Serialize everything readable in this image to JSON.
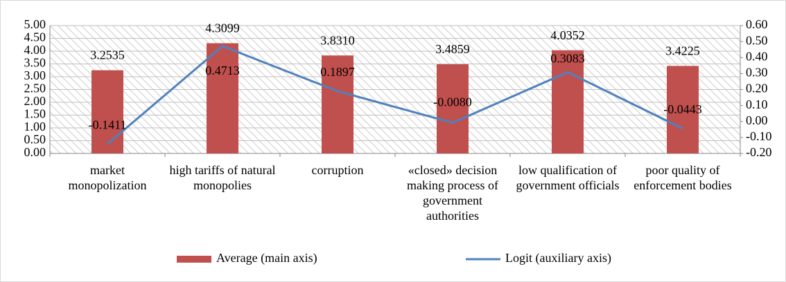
{
  "chart_data": {
    "type": "bar",
    "categories": [
      "market monopolization",
      "high tariffs of natural monopolies",
      "corruption",
      "«closed» decision making process of government authorities",
      "low qualification of government officials",
      "poor quality of enforcement bodies"
    ],
    "series": [
      {
        "name": "Average (main axis)",
        "type": "bar",
        "color": "#c0504d",
        "axis": "y",
        "values": [
          3.2535,
          4.3099,
          3.831,
          3.4859,
          4.0352,
          3.4225
        ],
        "value_labels": [
          "3.2535",
          "4.3099",
          "3.8310",
          "3.4859",
          "4.0352",
          "3.4225"
        ]
      },
      {
        "name": "Logit (auxiliary axis)",
        "type": "line",
        "color": "#4f81bd",
        "axis": "y2",
        "values": [
          -0.1411,
          0.4713,
          0.1897,
          -0.008,
          0.3083,
          -0.0443
        ],
        "value_labels": [
          "-0.1411",
          "0.4713",
          "0.1897",
          "-0.0080",
          "0.3083",
          "-0.0443"
        ]
      }
    ],
    "ylim": [
      0,
      5
    ],
    "yticks": [
      {
        "value": 0,
        "label": "0.00"
      },
      {
        "value": 0.5,
        "label": "0.50"
      },
      {
        "value": 1,
        "label": "1.00"
      },
      {
        "value": 1.5,
        "label": "1.50"
      },
      {
        "value": 2,
        "label": "2.00"
      },
      {
        "value": 2.5,
        "label": "2.50"
      },
      {
        "value": 3,
        "label": "3.00"
      },
      {
        "value": 3.5,
        "label": "3.50"
      },
      {
        "value": 4,
        "label": "4.00"
      },
      {
        "value": 4.5,
        "label": "4.50"
      },
      {
        "value": 5,
        "label": "5.00"
      }
    ],
    "y2lim": [
      -0.2,
      0.6
    ],
    "y2ticks": [
      {
        "value": -0.2,
        "label": "-0.20"
      },
      {
        "value": -0.1,
        "label": "-0.10"
      },
      {
        "value": 0,
        "label": "0.00"
      },
      {
        "value": 0.1,
        "label": "0.10"
      },
      {
        "value": 0.2,
        "label": "0.20"
      },
      {
        "value": 0.3,
        "label": "0.30"
      },
      {
        "value": 0.4,
        "label": "0.40"
      },
      {
        "value": 0.5,
        "label": "0.50"
      },
      {
        "value": 0.6,
        "label": "0.60"
      }
    ],
    "grid": true,
    "legend": "bottom"
  }
}
